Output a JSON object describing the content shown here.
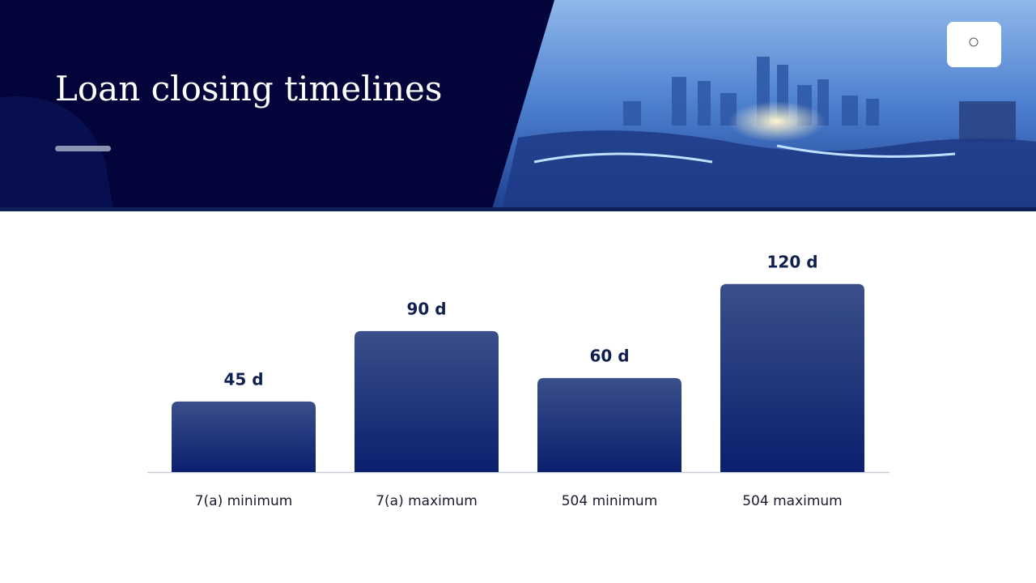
{
  "chart_data": {
    "type": "bar",
    "title": "Loan closing timelines",
    "categories": [
      "7(a) minimum",
      "7(a) maximum",
      "504 minimum",
      "504 maximum"
    ],
    "values": [
      45,
      90,
      60,
      120
    ],
    "value_labels": [
      "45 d",
      "90 d",
      "60 d",
      "120 d"
    ]
  }
}
